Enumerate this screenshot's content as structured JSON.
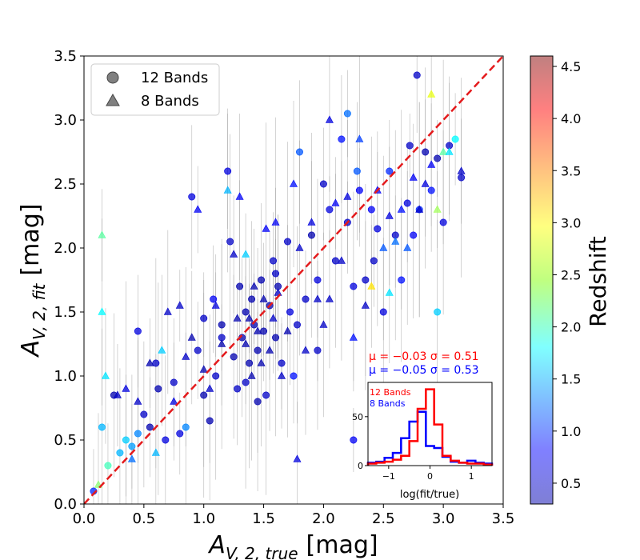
{
  "chart_data": {
    "type": "scatter",
    "xlabel_main": "A",
    "xlabel_sub": "V, 2, true",
    "xlabel_unit": "[mag]",
    "ylabel_main": "A",
    "ylabel_sub": "V, 2, fit",
    "ylabel_unit": "[mag]",
    "xlim": [
      0,
      3.5
    ],
    "ylim": [
      0,
      3.5
    ],
    "xticks": [
      "0.0",
      "0.5",
      "1.0",
      "1.5",
      "2.0",
      "2.5",
      "3.0",
      "3.5"
    ],
    "yticks": [
      "0.0",
      "0.5",
      "1.0",
      "1.5",
      "2.0",
      "2.5",
      "3.0",
      "3.5"
    ],
    "legend": {
      "position": "upper-left",
      "entries": [
        {
          "marker": "circle",
          "label": "12 Bands"
        },
        {
          "marker": "triangle",
          "label": "8 Bands"
        }
      ]
    },
    "identity_line": {
      "style": "dashed",
      "color": "#e41a1c"
    },
    "colorbar": {
      "label": "Redshift",
      "range": [
        0.3,
        4.6
      ],
      "ticks": [
        "0.5",
        "1.0",
        "1.5",
        "2.0",
        "2.5",
        "3.0",
        "3.5",
        "4.0",
        "4.5"
      ],
      "colormap": "jet"
    },
    "stats": [
      {
        "text": "μ = −0.03   σ = 0.51",
        "color": "#ff0000"
      },
      {
        "text": "μ = −0.05   σ = 0.53",
        "color": "#0000ff"
      }
    ],
    "inset": {
      "type": "step-histogram",
      "xlabel": "log(fit/true)",
      "xlim": [
        -1.5,
        1.5
      ],
      "ylim": [
        0,
        85
      ],
      "xticks": [
        "−1",
        "0",
        "1"
      ],
      "yticks": [
        "0",
        "50"
      ],
      "bin_edges": [
        -1.5,
        -1.3,
        -1.1,
        -0.9,
        -0.7,
        -0.5,
        -0.3,
        -0.1,
        0.1,
        0.3,
        0.5,
        0.7,
        0.9,
        1.1,
        1.3,
        1.5
      ],
      "series": [
        {
          "name": "12 Bands",
          "color": "#ff0000",
          "counts": [
            2,
            3,
            4,
            6,
            10,
            25,
            58,
            78,
            42,
            10,
            5,
            3,
            2,
            2,
            1
          ]
        },
        {
          "name": "8 Bands",
          "color": "#0000ff",
          "counts": [
            3,
            4,
            8,
            13,
            28,
            45,
            55,
            20,
            18,
            9,
            4,
            3,
            5,
            3,
            2
          ]
        }
      ]
    },
    "points_12_bands": [
      [
        0.08,
        0.1,
        1.0
      ],
      [
        0.15,
        0.6,
        1.6
      ],
      [
        0.25,
        0.85,
        0.5
      ],
      [
        0.35,
        0.5,
        1.7
      ],
      [
        0.4,
        0.45,
        1.5
      ],
      [
        0.45,
        0.55,
        1.4
      ],
      [
        0.5,
        0.7,
        0.6
      ],
      [
        0.55,
        0.6,
        0.5
      ],
      [
        0.62,
        0.9,
        0.5
      ],
      [
        0.68,
        0.5,
        0.7
      ],
      [
        0.75,
        0.95,
        0.6
      ],
      [
        0.8,
        0.55,
        0.7
      ],
      [
        0.85,
        0.6,
        1.4
      ],
      [
        0.9,
        2.4,
        0.7
      ],
      [
        0.95,
        1.2,
        0.6
      ],
      [
        1.0,
        0.85,
        0.5
      ],
      [
        1.05,
        0.65,
        0.5
      ],
      [
        1.08,
        1.6,
        0.8
      ],
      [
        1.1,
        1.0,
        0.6
      ],
      [
        1.15,
        1.4,
        0.5
      ],
      [
        1.2,
        2.6,
        0.7
      ],
      [
        1.22,
        2.05,
        0.6
      ],
      [
        1.25,
        1.15,
        0.5
      ],
      [
        1.28,
        0.9,
        0.6
      ],
      [
        1.3,
        1.7,
        0.5
      ],
      [
        1.32,
        1.3,
        0.5
      ],
      [
        1.35,
        1.5,
        0.5
      ],
      [
        1.38,
        1.1,
        0.5
      ],
      [
        1.4,
        1.6,
        0.5
      ],
      [
        1.42,
        1.4,
        0.5
      ],
      [
        1.45,
        1.2,
        0.5
      ],
      [
        1.48,
        1.75,
        0.5
      ],
      [
        1.5,
        1.35,
        0.5
      ],
      [
        1.52,
        0.85,
        0.6
      ],
      [
        1.55,
        1.55,
        0.5
      ],
      [
        1.58,
        1.9,
        0.6
      ],
      [
        1.6,
        1.3,
        0.5
      ],
      [
        1.62,
        1.7,
        0.5
      ],
      [
        1.65,
        1.1,
        0.6
      ],
      [
        1.7,
        2.05,
        0.6
      ],
      [
        1.72,
        1.5,
        0.7
      ],
      [
        1.75,
        1.0,
        0.9
      ],
      [
        1.78,
        1.4,
        0.6
      ],
      [
        1.8,
        2.75,
        1.2
      ],
      [
        1.85,
        1.6,
        0.6
      ],
      [
        1.9,
        2.1,
        0.5
      ],
      [
        1.95,
        1.2,
        0.6
      ],
      [
        2.0,
        2.5,
        0.6
      ],
      [
        2.05,
        2.3,
        0.7
      ],
      [
        2.1,
        1.9,
        0.6
      ],
      [
        2.15,
        2.85,
        0.9
      ],
      [
        2.2,
        2.2,
        0.6
      ],
      [
        2.25,
        1.7,
        0.7
      ],
      [
        2.28,
        2.6,
        1.2
      ],
      [
        2.3,
        2.45,
        0.8
      ],
      [
        2.35,
        1.75,
        0.6
      ],
      [
        2.4,
        2.3,
        0.8
      ],
      [
        2.42,
        1.9,
        0.6
      ],
      [
        2.45,
        2.15,
        0.7
      ],
      [
        2.5,
        1.5,
        0.7
      ],
      [
        2.55,
        2.6,
        1.0
      ],
      [
        2.6,
        2.1,
        0.6
      ],
      [
        2.65,
        1.75,
        0.9
      ],
      [
        2.7,
        2.35,
        0.7
      ],
      [
        2.72,
        2.8,
        0.6
      ],
      [
        2.75,
        2.1,
        0.8
      ],
      [
        2.78,
        3.35,
        0.6
      ],
      [
        2.8,
        2.3,
        1.0
      ],
      [
        2.85,
        2.75,
        0.5
      ],
      [
        2.9,
        2.45,
        0.9
      ],
      [
        2.95,
        2.7,
        0.5
      ],
      [
        3.0,
        2.2,
        0.7
      ],
      [
        3.05,
        2.8,
        0.6
      ],
      [
        3.1,
        2.85,
        1.9
      ],
      [
        3.15,
        2.55,
        0.6
      ],
      [
        2.25,
        0.5,
        0.8
      ],
      [
        2.95,
        1.5,
        1.7
      ],
      [
        2.2,
        3.05,
        1.3
      ],
      [
        1.15,
        1.3,
        0.6
      ],
      [
        1.35,
        0.95,
        0.6
      ],
      [
        1.45,
        0.8,
        0.5
      ],
      [
        0.6,
        1.1,
        0.6
      ],
      [
        0.45,
        1.35,
        0.7
      ],
      [
        0.3,
        0.4,
        1.6
      ],
      [
        0.2,
        0.3,
        2.2
      ],
      [
        1.0,
        1.45,
        0.6
      ],
      [
        1.6,
        1.8,
        0.6
      ],
      [
        1.95,
        1.75,
        0.7
      ]
    ],
    "points_8_bands": [
      [
        0.12,
        0.15,
        2.5
      ],
      [
        0.15,
        2.1,
        2.3
      ],
      [
        0.15,
        1.5,
        1.9
      ],
      [
        0.18,
        1.0,
        1.8
      ],
      [
        0.28,
        0.85,
        0.6
      ],
      [
        0.35,
        0.9,
        0.7
      ],
      [
        0.4,
        0.35,
        1.3
      ],
      [
        0.45,
        0.8,
        0.6
      ],
      [
        0.55,
        1.1,
        0.5
      ],
      [
        0.6,
        0.4,
        1.6
      ],
      [
        0.7,
        1.5,
        0.6
      ],
      [
        0.75,
        0.8,
        0.7
      ],
      [
        0.8,
        1.55,
        0.6
      ],
      [
        0.85,
        1.15,
        0.6
      ],
      [
        0.9,
        1.3,
        0.5
      ],
      [
        0.95,
        2.3,
        0.8
      ],
      [
        1.0,
        1.05,
        0.5
      ],
      [
        1.05,
        0.9,
        0.6
      ],
      [
        1.1,
        1.55,
        0.7
      ],
      [
        1.15,
        1.25,
        0.5
      ],
      [
        1.2,
        2.45,
        1.6
      ],
      [
        1.25,
        1.95,
        0.6
      ],
      [
        1.28,
        1.45,
        0.5
      ],
      [
        1.3,
        2.4,
        0.8
      ],
      [
        1.35,
        1.25,
        0.5
      ],
      [
        1.38,
        1.45,
        0.5
      ],
      [
        1.4,
        1.0,
        0.5
      ],
      [
        1.42,
        1.7,
        0.5
      ],
      [
        1.45,
        1.35,
        0.5
      ],
      [
        1.48,
        1.1,
        0.5
      ],
      [
        1.5,
        1.6,
        0.5
      ],
      [
        1.52,
        2.15,
        0.8
      ],
      [
        1.55,
        1.2,
        0.5
      ],
      [
        1.58,
        1.45,
        0.6
      ],
      [
        1.6,
        2.2,
        0.8
      ],
      [
        1.62,
        1.65,
        0.6
      ],
      [
        1.65,
        1.0,
        0.6
      ],
      [
        1.7,
        1.35,
        0.5
      ],
      [
        1.75,
        2.5,
        0.9
      ],
      [
        1.78,
        0.35,
        0.7
      ],
      [
        1.8,
        2.0,
        0.6
      ],
      [
        1.85,
        1.2,
        0.6
      ],
      [
        1.9,
        2.2,
        0.7
      ],
      [
        1.95,
        1.6,
        0.6
      ],
      [
        2.0,
        1.4,
        0.6
      ],
      [
        2.05,
        1.6,
        0.6
      ],
      [
        2.1,
        2.35,
        0.8
      ],
      [
        2.15,
        1.9,
        0.6
      ],
      [
        2.2,
        2.4,
        0.7
      ],
      [
        2.25,
        1.3,
        0.9
      ],
      [
        2.3,
        2.85,
        1.1
      ],
      [
        2.35,
        1.55,
        0.6
      ],
      [
        2.4,
        1.7,
        3.1
      ],
      [
        2.45,
        2.45,
        0.8
      ],
      [
        2.5,
        2.0,
        1.2
      ],
      [
        2.55,
        2.25,
        0.7
      ],
      [
        2.6,
        2.05,
        1.3
      ],
      [
        2.65,
        2.3,
        0.9
      ],
      [
        2.7,
        2.0,
        1.2
      ],
      [
        2.75,
        2.55,
        0.8
      ],
      [
        2.8,
        2.3,
        0.6
      ],
      [
        2.85,
        2.5,
        0.7
      ],
      [
        2.9,
        2.65,
        0.8
      ],
      [
        2.95,
        2.3,
        2.6
      ],
      [
        3.0,
        2.75,
        2.3
      ],
      [
        3.05,
        2.75,
        1.8
      ],
      [
        3.15,
        2.6,
        0.6
      ],
      [
        2.9,
        3.2,
        2.9
      ],
      [
        2.55,
        1.65,
        1.8
      ],
      [
        1.35,
        1.95,
        1.7
      ],
      [
        0.65,
        1.2,
        1.7
      ],
      [
        2.05,
        3.0,
        0.7
      ]
    ]
  }
}
